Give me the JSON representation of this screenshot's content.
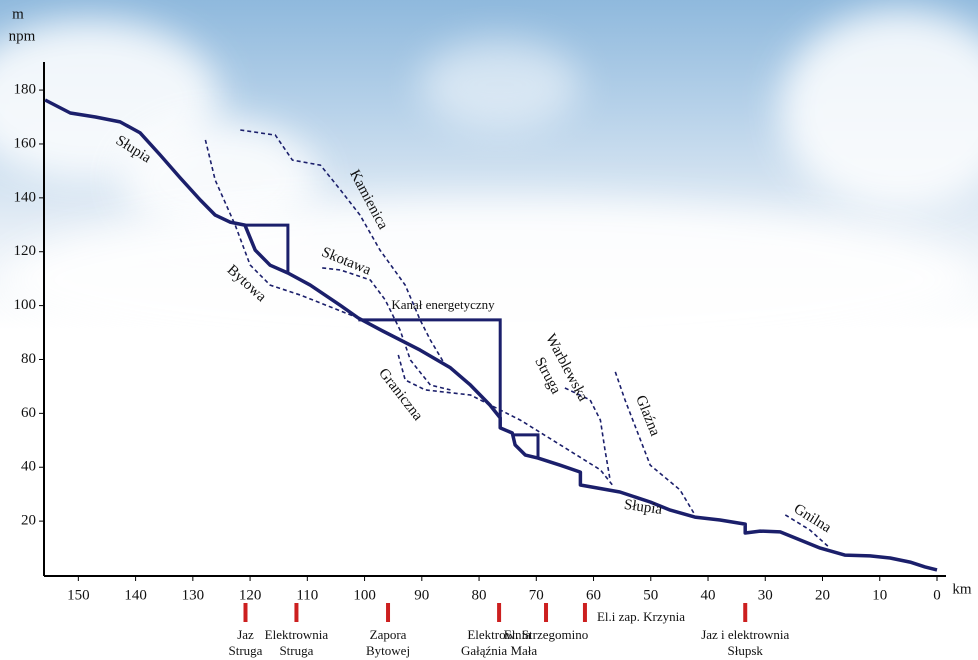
{
  "chart_data": {
    "type": "line",
    "y_axis_label": [
      "m",
      "npm"
    ],
    "x_axis_label": "km",
    "xlim": [
      156,
      0
    ],
    "ylim": [
      0,
      183
    ],
    "xticks": [
      150,
      140,
      130,
      120,
      110,
      100,
      90,
      80,
      70,
      60,
      50,
      40,
      30,
      20,
      10,
      0
    ],
    "yticks": [
      20,
      40,
      60,
      80,
      100,
      120,
      140,
      160,
      180
    ],
    "series": [
      {
        "name": "Słupia",
        "color": "#1b1f6b",
        "style": "solid",
        "x": [
          155.8,
          151.4,
          147.0,
          142.7,
          139.2,
          135.7,
          132.2,
          128.7,
          126.1,
          123.5,
          120.9,
          119.1,
          116.5,
          113.4,
          109.5,
          104.3,
          101.1,
          97.3,
          90.3,
          85.0,
          81.5,
          78.1,
          76.3,
          76.3,
          74.2,
          73.7,
          71.9,
          69.7,
          65.9,
          62.3,
          62.3,
          55.4,
          50.1,
          46.6,
          42.3,
          37.9,
          33.5,
          33.5,
          30.9,
          27.4,
          23.9,
          20.4,
          16.1,
          11.7,
          8.2,
          4.7,
          2.1,
          0
        ],
        "y": [
          176.3,
          171.5,
          170.0,
          168.2,
          164.1,
          155.9,
          147.4,
          139.2,
          133.6,
          131.0,
          129.9,
          120.6,
          115.0,
          112.1,
          107.6,
          100.2,
          95.4,
          91.1,
          83.5,
          76.9,
          70.5,
          63.1,
          58.3,
          54.6,
          52.7,
          48.3,
          44.5,
          43.4,
          40.8,
          38.2,
          33.4,
          30.8,
          27.1,
          24.1,
          21.5,
          20.4,
          18.9,
          15.6,
          16.3,
          16.0,
          13.0,
          10.0,
          7.4,
          7.1,
          6.3,
          4.8,
          3.0,
          1.9
        ]
      },
      {
        "name": "Bytowa",
        "color": "#1b1f6b",
        "style": "dashed",
        "x": [
          127.8,
          126.1,
          122.6,
          120.0,
          116.5,
          111.2,
          101.1
        ],
        "y": [
          161.5,
          146.6,
          129.9,
          115.1,
          107.6,
          103.9,
          95.4
        ]
      },
      {
        "name": "Kamienica",
        "color": "#1b1f6b",
        "style": "dashed",
        "x": [
          121.7,
          115.6,
          112.6,
          107.7,
          104.2,
          100.8,
          97.3,
          92.9,
          90.3,
          88.5,
          85.9
        ],
        "y": [
          165.2,
          163.3,
          154.0,
          152.1,
          142.9,
          133.6,
          120.6,
          107.6,
          94.7,
          87.2,
          77.9
        ]
      },
      {
        "name": "Skotawa",
        "color": "#1b1f6b",
        "style": "dashed",
        "x": [
          107.4,
          104.2,
          99.0,
          96.4,
          93.8,
          92.0,
          88.5,
          85.0
        ],
        "y": [
          114.0,
          113.2,
          109.5,
          102.1,
          90.9,
          79.8,
          70.5,
          68.7
        ]
      },
      {
        "name": "Graniczna",
        "color": "#1b1f6b",
        "style": "dashed",
        "x": [
          94.1,
          92.9,
          89.4,
          81.5,
          72.8,
          65.8,
          58.8,
          56.7
        ],
        "y": [
          81.7,
          72.4,
          68.7,
          66.8,
          57.5,
          48.3,
          39.0,
          33.4
        ]
      },
      {
        "name": [
          "Warblewska",
          "Struga"
        ],
        "color": "#1b1f6b",
        "style": "dashed",
        "x": [
          65.0,
          60.6,
          58.8,
          58.0,
          57.1
        ],
        "y": [
          69.4,
          65.0,
          57.5,
          46.4,
          35.3
        ]
      },
      {
        "name": "Glaźna",
        "color": "#1b1f6b",
        "style": "dashed",
        "x": [
          56.2,
          54.5,
          50.1,
          44.9,
          42.3
        ],
        "y": [
          75.4,
          65.0,
          40.8,
          31.6,
          22.3
        ]
      },
      {
        "name": "Gnilna",
        "color": "#1b1f6b",
        "style": "dashed",
        "x": [
          26.5,
          22.2,
          18.7
        ],
        "y": [
          22.3,
          16.7,
          10.0
        ]
      }
    ],
    "structures": [
      {
        "x": [
          120.9,
          113.4,
          113.4
        ],
        "y": [
          129.9,
          129.9,
          112.1
        ]
      },
      {
        "x": [
          101.1,
          76.3,
          76.3
        ],
        "y": [
          94.7,
          94.7,
          58.3
        ]
      },
      {
        "x": [
          74.2,
          69.7,
          69.7
        ],
        "y": [
          52.0,
          52.0,
          43.4
        ]
      }
    ],
    "annotation": "Kanał energetyczny",
    "facility_color": "#cc1f1f",
    "facilities": [
      {
        "km": 120.8,
        "label": [
          "Jaz",
          "Struga"
        ]
      },
      {
        "km": 111.9,
        "label": [
          "Elektrownia",
          "Struga"
        ]
      },
      {
        "km": 95.9,
        "label": [
          "Zapora",
          "Bytowej"
        ]
      },
      {
        "km": 76.5,
        "label": [
          "Elektrownia",
          "Gałąźnia Mała"
        ]
      },
      {
        "km": 68.3,
        "label": [
          "El. Strzegomino"
        ]
      },
      {
        "km": 61.5,
        "label": [
          "El.i zap. Krzynia"
        ]
      },
      {
        "km": 33.5,
        "label": [
          "Jaz i elektrownia",
          "Słupsk"
        ]
      }
    ]
  }
}
